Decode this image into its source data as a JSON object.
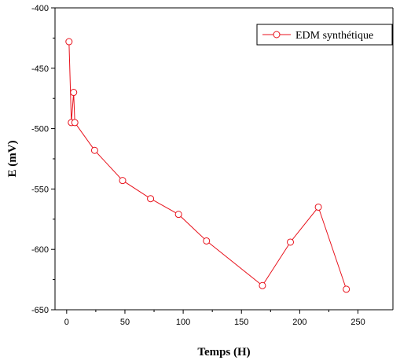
{
  "chart_data": {
    "type": "line",
    "xlabel": "Temps (H)",
    "ylabel": "E  (mV)",
    "xlim": [
      -10,
      280
    ],
    "ylim": [
      -650,
      -400
    ],
    "xticks": [
      0,
      50,
      100,
      150,
      200,
      250
    ],
    "yticks": [
      -400,
      -450,
      -500,
      -550,
      -600,
      -650
    ],
    "grid": false,
    "legend_position": "top-right",
    "series": [
      {
        "name": "EDM synthétique",
        "color": "#e8121c",
        "marker": "open-circle",
        "x": [
          2,
          4,
          6,
          7,
          24,
          48,
          72,
          96,
          120,
          168,
          192,
          216,
          240
        ],
        "y": [
          -428,
          -495,
          -470,
          -495,
          -518,
          -543,
          -558,
          -571,
          -593,
          -630,
          -594,
          -565,
          -633
        ]
      }
    ]
  }
}
